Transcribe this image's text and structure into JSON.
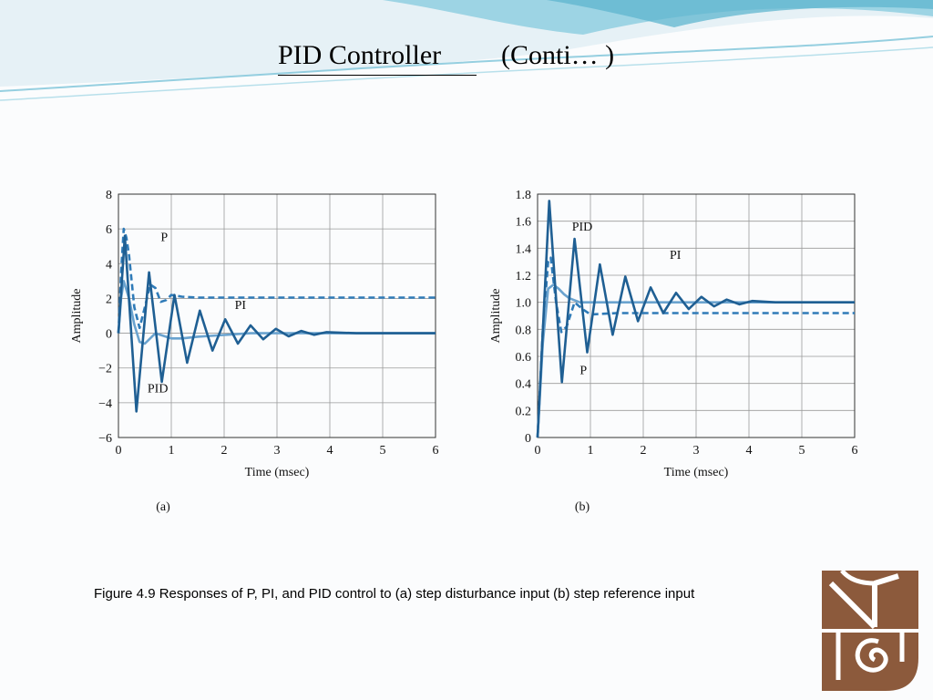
{
  "slide": {
    "title": "PID Controller",
    "title_suffix": "(Conti… )",
    "caption": "Figure 4.9   Responses of P, PI, and PID control to (a) step disturbance input (b) step reference input",
    "logo_icon": "university-emblem-icon",
    "colors": {
      "dark_series": "#1f5f93",
      "light_series": "#6aa3cf",
      "logo": "#8c5a3c",
      "header_wave": "#7cc3d8"
    }
  },
  "chart_data": [
    {
      "type": "line",
      "panel_label": "(a)",
      "xlabel": "Time (msec)",
      "ylabel": "Amplitude",
      "xlim": [
        0,
        6
      ],
      "ylim": [
        -6,
        8
      ],
      "xticks": [
        0,
        1,
        2,
        3,
        4,
        5,
        6
      ],
      "yticks": [
        -6,
        -4,
        -2,
        0,
        2,
        4,
        6,
        8
      ],
      "ytick_labels": [
        "−6",
        "−4",
        "−2",
        "0",
        "2",
        "4",
        "6",
        "8"
      ],
      "grid": true,
      "series": [
        {
          "name": "P",
          "style": "dashed",
          "color": "#2f7bb8",
          "x": [
            0,
            0.05,
            0.1,
            0.15,
            0.2,
            0.3,
            0.4,
            0.5,
            0.6,
            0.7,
            0.8,
            0.9,
            1.0,
            1.2,
            1.5,
            2,
            3,
            4,
            5,
            6
          ],
          "y": [
            0,
            3.5,
            6.0,
            5.5,
            4.5,
            1.5,
            0.3,
            1.5,
            2.8,
            2.6,
            1.8,
            1.9,
            2.2,
            2.1,
            2.05,
            2.05,
            2.05,
            2.05,
            2.05,
            2.05
          ]
        },
        {
          "name": "PI",
          "style": "solid",
          "color": "#6aa3cf",
          "x": [
            0,
            0.05,
            0.1,
            0.2,
            0.3,
            0.4,
            0.5,
            0.6,
            0.7,
            0.8,
            1.0,
            1.2,
            1.5,
            2.0,
            2.5,
            3.0,
            4.0,
            5.0,
            6.0
          ],
          "y": [
            0,
            2.0,
            3.0,
            2.0,
            0.5,
            -0.5,
            -0.6,
            -0.3,
            0.0,
            -0.1,
            -0.3,
            -0.3,
            -0.2,
            -0.1,
            0,
            0,
            0,
            0,
            0
          ]
        },
        {
          "name": "PID",
          "style": "solid",
          "color": "#1f5f93",
          "x": [
            0,
            0.12,
            0.34,
            0.58,
            0.82,
            1.06,
            1.3,
            1.54,
            1.78,
            2.02,
            2.26,
            2.5,
            2.74,
            2.98,
            3.22,
            3.46,
            3.7,
            3.94,
            4.5,
            5,
            6
          ],
          "y": [
            0,
            5.6,
            -4.5,
            3.5,
            -2.8,
            2.2,
            -1.7,
            1.3,
            -1.0,
            0.8,
            -0.6,
            0.45,
            -0.35,
            0.25,
            -0.18,
            0.13,
            -0.09,
            0.06,
            0,
            0,
            0
          ]
        }
      ],
      "annotations": [
        {
          "text": "P",
          "x": 0.8,
          "y": 5.3
        },
        {
          "text": "PI",
          "x": 2.2,
          "y": 1.4
        },
        {
          "text": "PID",
          "x": 0.55,
          "y": -3.4
        }
      ]
    },
    {
      "type": "line",
      "panel_label": "(b)",
      "xlabel": "Time (msec)",
      "ylabel": "Amplitude",
      "xlim": [
        0,
        6
      ],
      "ylim": [
        0,
        1.8
      ],
      "xticks": [
        0,
        1,
        2,
        3,
        4,
        5,
        6
      ],
      "yticks": [
        0,
        0.2,
        0.4,
        0.6,
        0.8,
        1.0,
        1.2,
        1.4,
        1.6,
        1.8
      ],
      "ytick_labels": [
        "0",
        "0.2",
        "0.4",
        "0.6",
        "0.8",
        "1.0",
        "1.2",
        "1.4",
        "1.6",
        "1.8"
      ],
      "grid": true,
      "series": [
        {
          "name": "P",
          "style": "dashed",
          "color": "#2f7bb8",
          "x": [
            0,
            0.1,
            0.2,
            0.25,
            0.35,
            0.45,
            0.55,
            0.7,
            0.85,
            1.0,
            1.5,
            2,
            3,
            4,
            5,
            6
          ],
          "y": [
            0,
            0.8,
            1.3,
            1.33,
            1.0,
            0.78,
            0.82,
            1.0,
            0.95,
            0.91,
            0.92,
            0.92,
            0.92,
            0.92,
            0.92,
            0.92
          ]
        },
        {
          "name": "PI",
          "style": "solid",
          "color": "#6aa3cf",
          "x": [
            0,
            0.1,
            0.2,
            0.3,
            0.4,
            0.5,
            0.6,
            0.8,
            1.0,
            1.5,
            2,
            3,
            4,
            5,
            6
          ],
          "y": [
            0,
            0.7,
            1.1,
            1.13,
            1.1,
            1.06,
            1.03,
            1.0,
            1.0,
            1.0,
            1.0,
            1.0,
            1.0,
            1.0,
            1.0
          ]
        },
        {
          "name": "PID",
          "style": "solid",
          "color": "#1f5f93",
          "x": [
            0,
            0.22,
            0.46,
            0.7,
            0.94,
            1.18,
            1.42,
            1.66,
            1.9,
            2.14,
            2.38,
            2.62,
            2.86,
            3.1,
            3.34,
            3.58,
            3.82,
            4.06,
            4.5,
            5,
            6
          ],
          "y": [
            0,
            1.75,
            0.41,
            1.47,
            0.63,
            1.28,
            0.76,
            1.19,
            0.86,
            1.11,
            0.92,
            1.07,
            0.95,
            1.04,
            0.97,
            1.02,
            0.985,
            1.01,
            1.0,
            1.0,
            1.0
          ]
        }
      ],
      "annotations": [
        {
          "text": "PID",
          "x": 0.65,
          "y": 1.53
        },
        {
          "text": "PI",
          "x": 2.5,
          "y": 1.32
        },
        {
          "text": "P",
          "x": 0.8,
          "y": 0.47
        }
      ]
    }
  ]
}
